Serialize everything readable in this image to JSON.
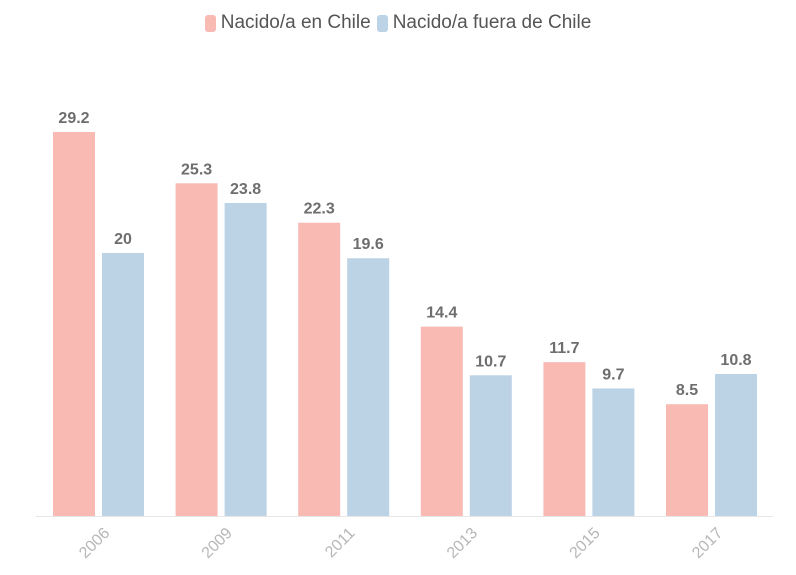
{
  "chart_data": {
    "type": "bar",
    "categories": [
      "2006",
      "2009",
      "2011",
      "2013",
      "2015",
      "2017"
    ],
    "series": [
      {
        "name": "Nacido/a en Chile",
        "color": "#f9bab4",
        "values": [
          29.2,
          25.3,
          22.3,
          14.4,
          11.7,
          8.5
        ]
      },
      {
        "name": "Nacido/a fuera de Chile",
        "color": "#bcd2e5",
        "values": [
          20,
          23.8,
          19.6,
          10.7,
          9.7,
          10.8
        ]
      }
    ],
    "ylim": [
      0,
      29.2
    ],
    "grid": false,
    "legend_position": "top-center",
    "data_labels": true,
    "tick_label_rotation_deg": -45
  }
}
